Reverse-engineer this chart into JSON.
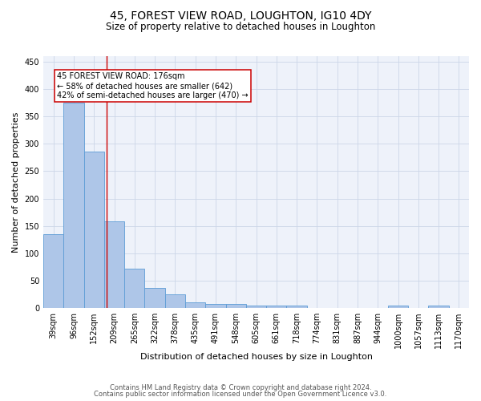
{
  "title": "45, FOREST VIEW ROAD, LOUGHTON, IG10 4DY",
  "subtitle": "Size of property relative to detached houses in Loughton",
  "xlabel": "Distribution of detached houses by size in Loughton",
  "ylabel": "Number of detached properties",
  "footnote1": "Contains HM Land Registry data © Crown copyright and database right 2024.",
  "footnote2": "Contains public sector information licensed under the Open Government Licence v3.0.",
  "bin_labels": [
    "39sqm",
    "96sqm",
    "152sqm",
    "209sqm",
    "265sqm",
    "322sqm",
    "378sqm",
    "435sqm",
    "491sqm",
    "548sqm",
    "605sqm",
    "661sqm",
    "718sqm",
    "774sqm",
    "831sqm",
    "887sqm",
    "944sqm",
    "1000sqm",
    "1057sqm",
    "1113sqm",
    "1170sqm"
  ],
  "bar_heights": [
    135,
    375,
    285,
    158,
    72,
    37,
    25,
    10,
    8,
    7,
    4,
    4,
    5,
    0,
    0,
    0,
    0,
    4,
    0,
    4,
    0
  ],
  "bar_color": "#aec6e8",
  "bar_edge_color": "#5b9bd5",
  "grid_color": "#ccd6e8",
  "vline_x": 2.62,
  "vline_color": "#cc0000",
  "annotation_line1": "45 FOREST VIEW ROAD: 176sqm",
  "annotation_line2": "← 58% of detached houses are smaller (642)",
  "annotation_line3": "42% of semi-detached houses are larger (470) →",
  "annotation_box_color": "white",
  "annotation_box_edge_color": "#cc0000",
  "ylim": [
    0,
    460
  ],
  "yticks": [
    0,
    50,
    100,
    150,
    200,
    250,
    300,
    350,
    400,
    450
  ],
  "background_color": "#eef2fa",
  "title_fontsize": 10,
  "subtitle_fontsize": 8.5,
  "axis_label_fontsize": 8,
  "tick_fontsize": 7,
  "annotation_fontsize": 7,
  "footnote_fontsize": 6
}
